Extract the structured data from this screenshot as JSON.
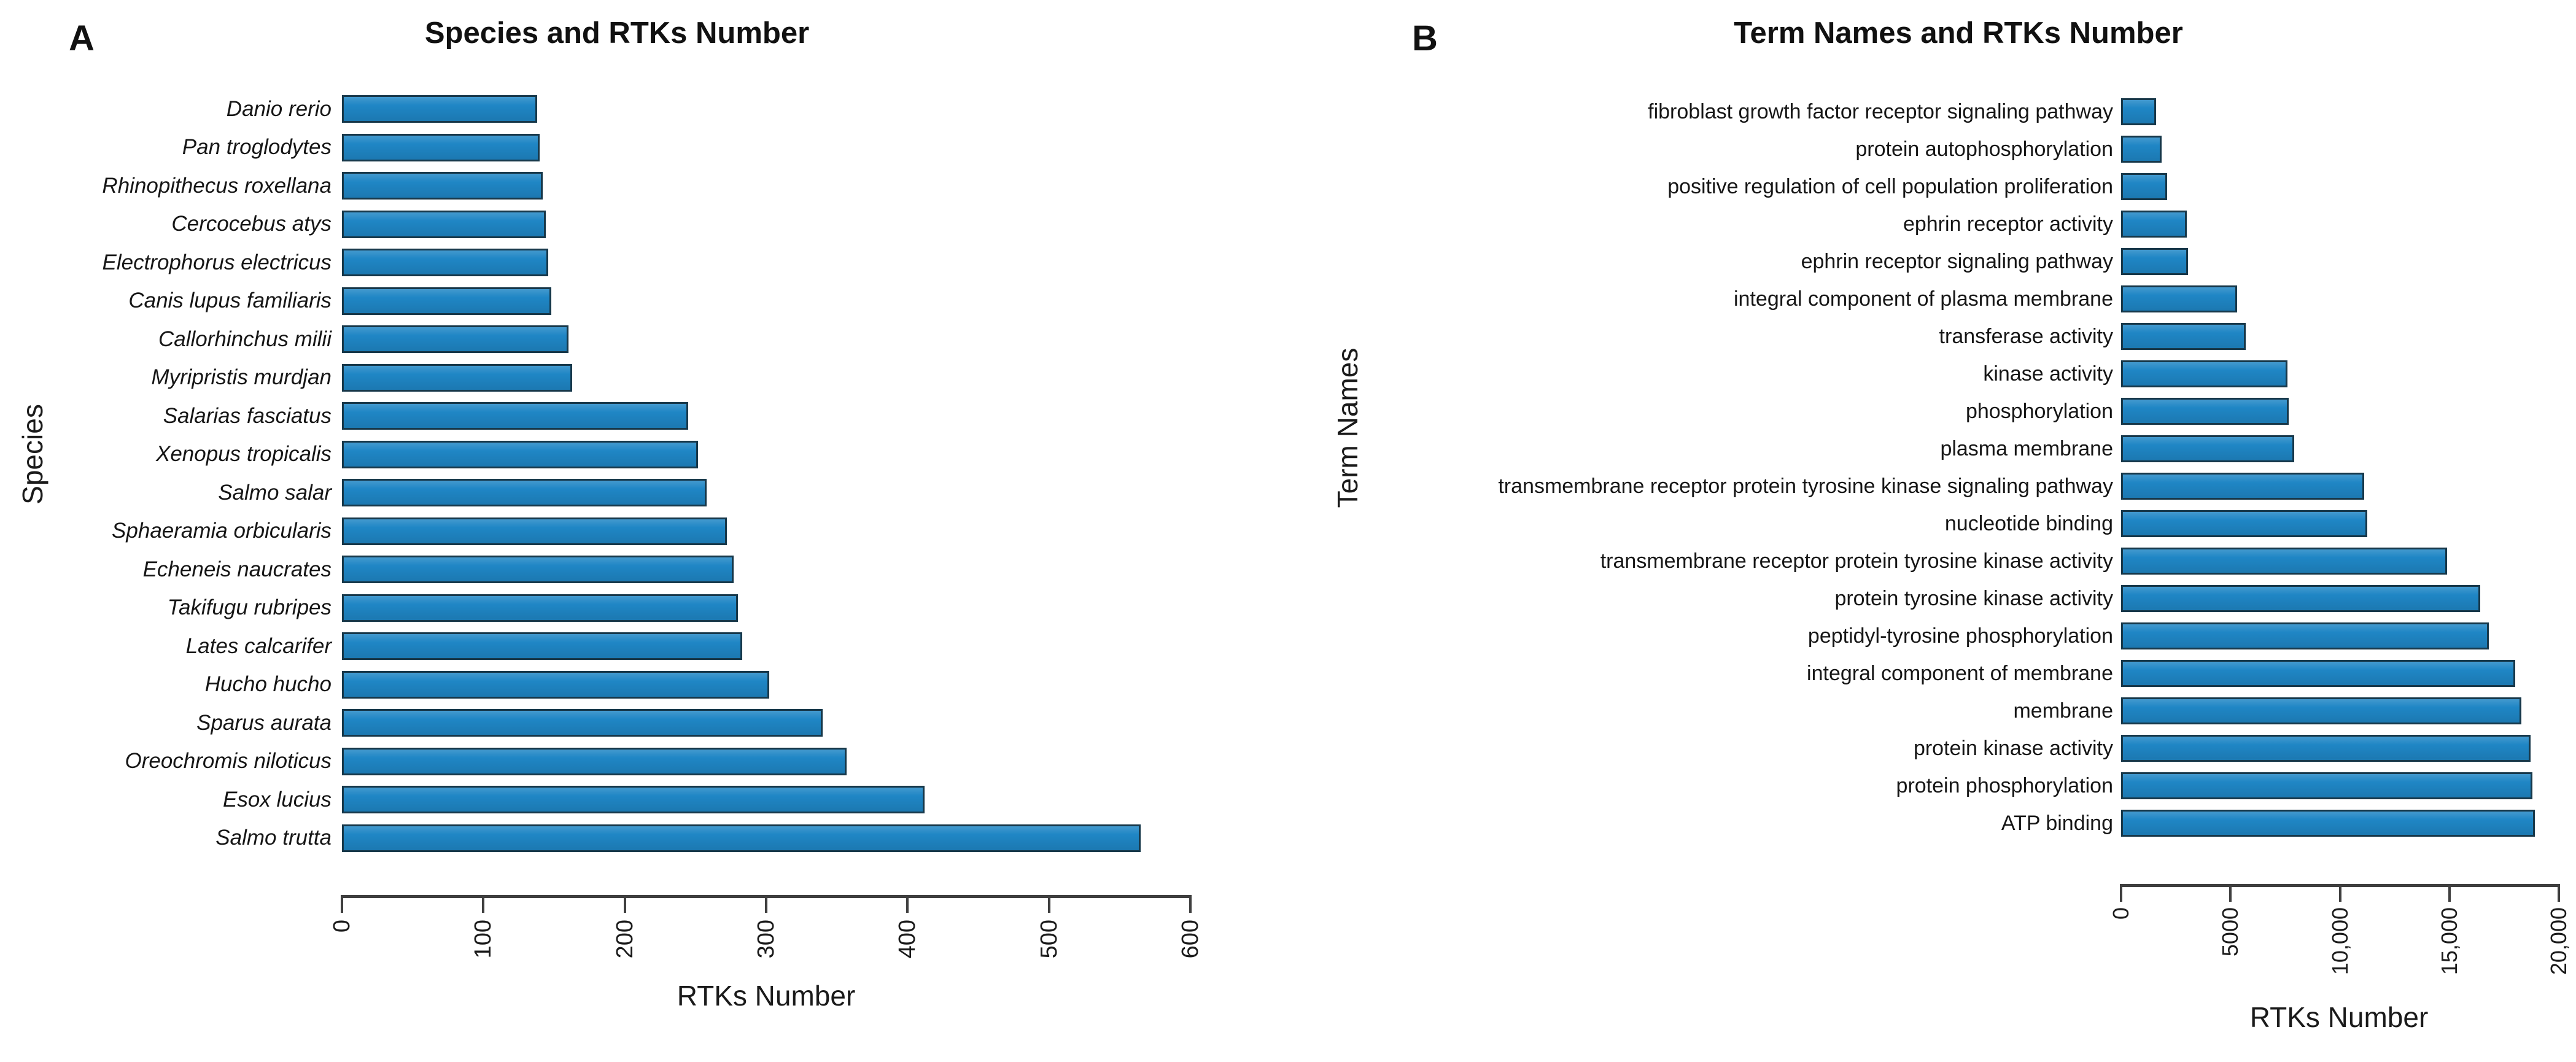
{
  "figure_caption": "Two-panel horizontal bar chart figure",
  "chart_data": [
    {
      "panel_label": "A",
      "type": "bar",
      "orientation": "horizontal",
      "title": "Species and RTKs Number",
      "xlabel": "RTKs Number",
      "ylabel": "Species",
      "categories": [
        "Danio rerio",
        "Pan troglodytes",
        "Rhinopithecus roxellana",
        "Cercocebus atys",
        "Electrophorus electricus",
        "Canis lupus familiaris",
        "Callorhinchus milii",
        "Myripristis murdjan",
        "Salarias fasciatus",
        "Xenopus tropicalis",
        "Salmo salar",
        "Sphaeramia orbicularis",
        "Echeneis naucrates",
        "Takifugu rubripes",
        "Lates calcarifer",
        "Hucho hucho",
        "Sparus aurata",
        "Oreochromis niloticus",
        "Esox lucius",
        "Salmo trutta"
      ],
      "values": [
        138,
        140,
        142,
        144,
        146,
        148,
        160,
        163,
        245,
        252,
        258,
        272,
        277,
        280,
        283,
        302,
        340,
        357,
        412,
        565
      ],
      "xlim": [
        0,
        600
      ],
      "xticks": [
        0,
        100,
        200,
        300,
        400,
        500,
        600
      ],
      "xtick_labels": [
        "0",
        "100",
        "200",
        "300",
        "400",
        "500",
        "600"
      ],
      "tick_label_rotation": -90,
      "grid": false,
      "legend": "none",
      "category_style": "italic",
      "bar_fill": "#1F86C5",
      "bar_border": "#17384A"
    },
    {
      "panel_label": "B",
      "type": "bar",
      "orientation": "horizontal",
      "title": "Term Names and RTKs Number",
      "xlabel": "RTKs Number",
      "ylabel": "Term Names",
      "categories": [
        "fibroblast growth factor receptor signaling pathway",
        "protein autophosphorylation",
        "positive regulation of cell population proliferation",
        "ephrin receptor activity",
        "ephrin receptor signaling pathway",
        "integral component of plasma membrane",
        "transferase activity",
        "kinase activity",
        "phosphorylation",
        "plasma membrane",
        "transmembrane receptor protein tyrosine kinase signaling pathway",
        "nucleotide binding",
        "transmembrane receptor protein tyrosine kinase activity",
        "protein tyrosine kinase activity",
        "peptidyl-tyrosine phosphorylation",
        "integral component of membrane",
        "membrane",
        "protein kinase activity",
        "protein phosphorylation",
        "ATP binding"
      ],
      "values": [
        1600,
        1850,
        2100,
        3000,
        3050,
        5300,
        5700,
        7600,
        7650,
        7900,
        11100,
        11250,
        14900,
        16400,
        16800,
        18000,
        18300,
        18700,
        18800,
        18900
      ],
      "xlim": [
        0,
        20000
      ],
      "xticks": [
        0,
        5000,
        10000,
        15000,
        20000
      ],
      "xtick_labels": [
        "0",
        "5000",
        "10,000",
        "15,000",
        "20,000"
      ],
      "tick_label_rotation": -90,
      "grid": false,
      "legend": "none",
      "category_style": "normal",
      "bar_fill": "#1F86C5",
      "bar_border": "#17384A"
    }
  ]
}
